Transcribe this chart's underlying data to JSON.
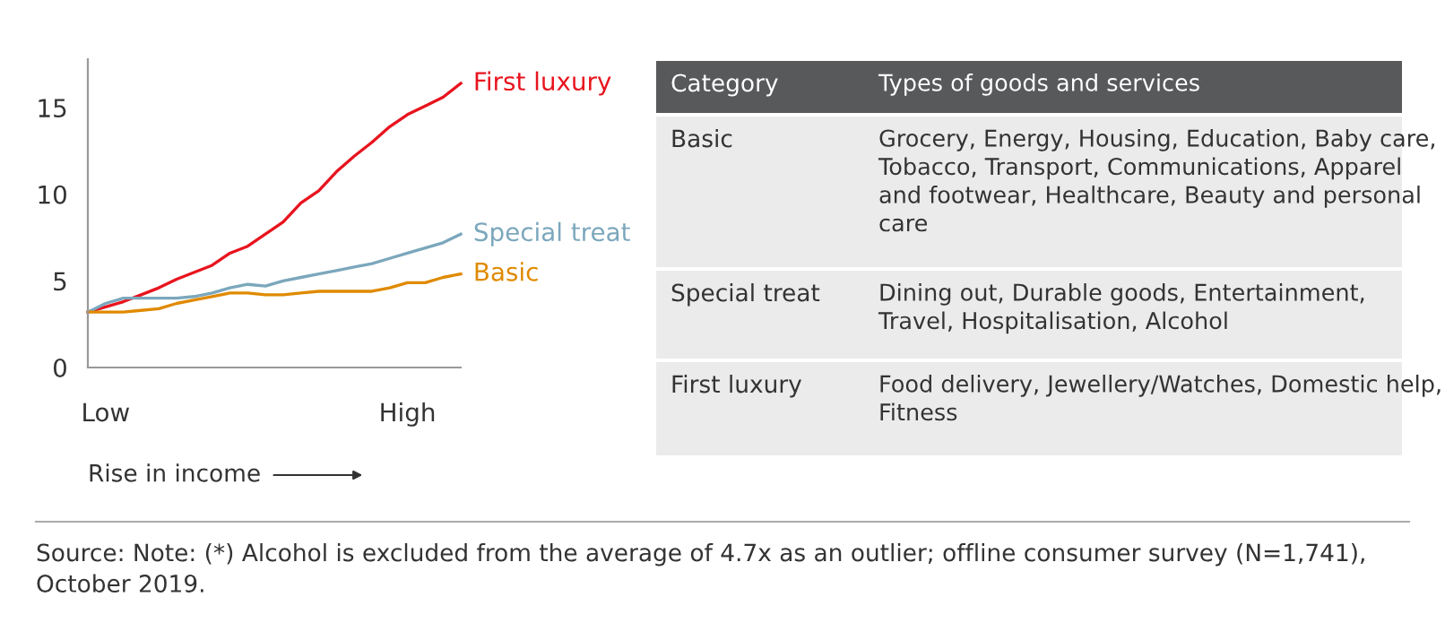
{
  "chart_data": [
    {
      "type": "line",
      "xlabel": "Rise in income",
      "ylim": [
        0,
        17.8
      ],
      "categories": [
        null,
        "Low",
        null,
        null,
        null,
        null,
        null,
        null,
        null,
        null,
        null,
        null,
        null,
        null,
        null,
        null,
        null,
        null,
        "High",
        null,
        null,
        null
      ],
      "yticks": [
        0,
        5,
        10,
        15
      ],
      "grid": false,
      "legend": false,
      "marker": "none",
      "line_style": "solid",
      "series": [
        {
          "name": "First luxury",
          "color": "#e8141e",
          "values": [
            3.2,
            3.5,
            3.8,
            4.2,
            4.6,
            5.1,
            5.5,
            5.9,
            6.6,
            7.0,
            7.7,
            8.4,
            9.5,
            10.2,
            11.3,
            12.2,
            13.0,
            13.9,
            14.6,
            15.1,
            15.6,
            16.4
          ]
        },
        {
          "name": "Special treat",
          "color": "#7ba7bc",
          "values": [
            3.2,
            3.7,
            4.0,
            4.0,
            4.0,
            4.0,
            4.1,
            4.3,
            4.6,
            4.8,
            4.7,
            5.0,
            5.2,
            5.4,
            5.6,
            5.8,
            6.0,
            6.3,
            6.6,
            6.9,
            7.2,
            7.7
          ]
        },
        {
          "name": "Basic",
          "color": "#e08a00",
          "values": [
            3.2,
            3.2,
            3.2,
            3.3,
            3.4,
            3.7,
            3.9,
            4.1,
            4.3,
            4.3,
            4.2,
            4.2,
            4.3,
            4.4,
            4.4,
            4.4,
            4.4,
            4.6,
            4.9,
            4.9,
            5.2,
            5.4
          ]
        }
      ],
      "annotations": [
        "Source: Note: (*) Alcohol is excluded from the average of 4.7x as an outlier; offline consumer survey (N=1,741), October 2019."
      ]
    },
    {
      "type": "other",
      "annotations": [
        "Category",
        "Types of goods and services",
        "Basic",
        "Grocery, Energy, Housing, Education, Baby care, Tobacco, Transport, Communications, Apparel and footwear, Healthcare, Beauty and personal care",
        "Special treat",
        "Dining out, Durable goods, Entertainment, Travel, Hospitalisation, Alcohol",
        "First luxury",
        "Food delivery, Jewellery/Watches, Domestic help, Fitness"
      ]
    }
  ]
}
